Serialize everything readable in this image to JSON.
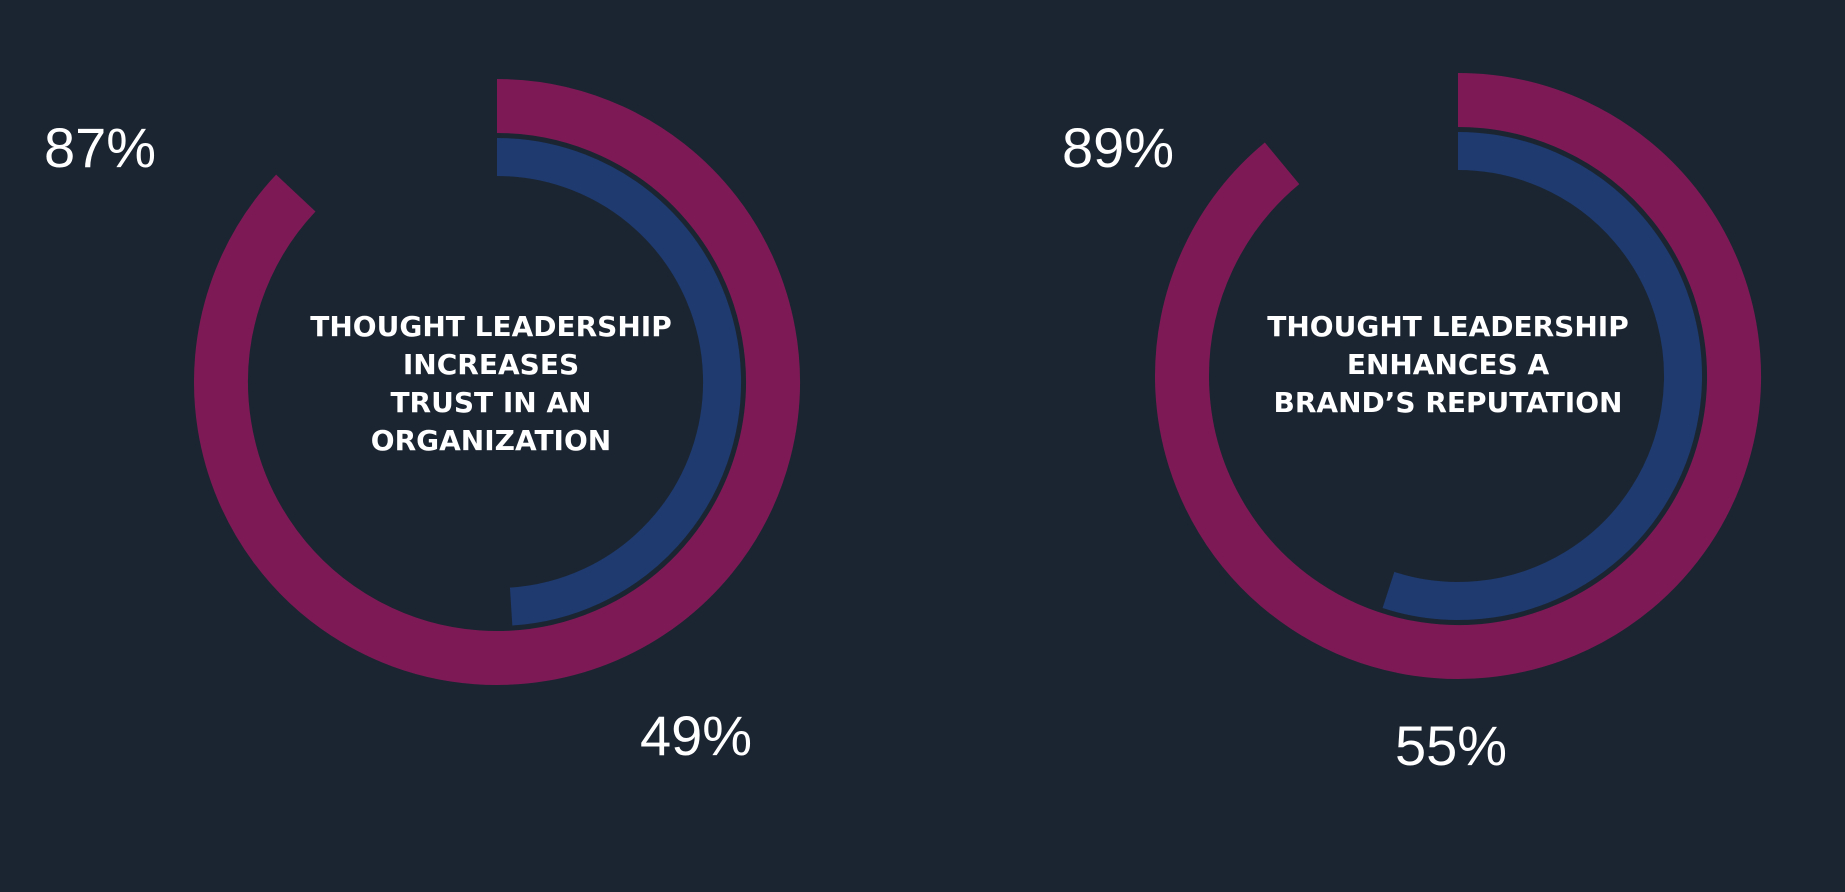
{
  "colors": {
    "background": "#1b2532",
    "outer_ring": "#7d1a55",
    "inner_ring": "#1e3a6e",
    "text": "#ffffff"
  },
  "chart_data": [
    {
      "type": "radial-bar",
      "caption": [
        "THOUGHT LEADERSHIP",
        "INCREASES",
        "TRUST IN AN",
        "ORGANIZATION"
      ],
      "series": [
        {
          "ring": "outer",
          "value": 87,
          "label": "87%"
        },
        {
          "ring": "inner",
          "value": 49,
          "label": "49%"
        }
      ],
      "max": 100
    },
    {
      "type": "radial-bar",
      "caption": [
        "THOUGHT LEADERSHIP",
        "ENHANCES A",
        "BRAND’S REPUTATION"
      ],
      "series": [
        {
          "ring": "outer",
          "value": 89,
          "label": "89%"
        },
        {
          "ring": "inner",
          "value": 55,
          "label": "55%"
        }
      ],
      "max": 100
    }
  ]
}
